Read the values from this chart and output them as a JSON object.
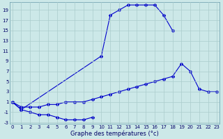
{
  "xlabel": "Graphe des températures (°c)",
  "background_color": "#cce8e8",
  "grid_color": "#aacccc",
  "line_color": "#0000cc",
  "x_values": [
    0,
    1,
    2,
    3,
    4,
    5,
    6,
    7,
    8,
    9,
    10,
    11,
    12,
    13,
    14,
    15,
    16,
    17,
    18,
    19,
    20,
    21,
    22,
    23
  ],
  "line1_x": [
    0,
    1,
    10,
    11,
    12,
    13,
    14,
    15,
    16,
    17,
    18
  ],
  "line1_y": [
    1,
    -0.5,
    10,
    18,
    19,
    20,
    20,
    20,
    20,
    18,
    15
  ],
  "line2_x": [
    0,
    1,
    2,
    3,
    4,
    5,
    6,
    7,
    8,
    9
  ],
  "line2_y": [
    1,
    -0.5,
    -1,
    -1.5,
    -1.5,
    -2,
    -2.5,
    -2.5,
    -2.5,
    -2
  ],
  "line3_x": [
    0,
    1,
    2,
    3,
    4,
    5,
    6,
    7,
    8,
    9,
    10,
    11,
    12,
    13,
    14,
    15,
    16,
    17,
    18,
    19,
    20,
    21,
    22,
    23
  ],
  "line3_y": [
    1,
    0,
    0,
    0,
    0.5,
    0.5,
    1,
    1,
    1,
    1.5,
    2,
    2.5,
    3,
    3.5,
    4,
    4.5,
    5,
    5.5,
    6,
    8.5,
    7,
    3.5,
    3,
    3
  ],
  "ylim_min": -3,
  "ylim_max": 20,
  "yticks": [
    -3,
    -1,
    1,
    3,
    5,
    7,
    9,
    11,
    13,
    15,
    17,
    19
  ],
  "xlim_min": 0,
  "xlim_max": 23,
  "xticks": [
    0,
    1,
    2,
    3,
    4,
    5,
    6,
    7,
    8,
    9,
    10,
    11,
    12,
    13,
    14,
    15,
    16,
    17,
    18,
    19,
    20,
    21,
    22,
    23
  ],
  "marker": "D",
  "marker_size": 2.0,
  "line_width": 0.8,
  "tick_fontsize": 5.0,
  "xlabel_fontsize": 6.0
}
